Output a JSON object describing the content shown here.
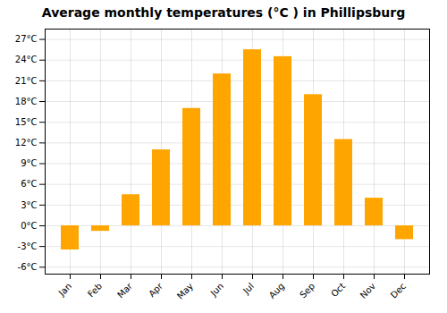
{
  "chart_data": {
    "type": "bar",
    "title": "Average monthly temperatures (°C ) in Phillipsburg",
    "categories": [
      "Jan",
      "Feb",
      "Mar",
      "Apr",
      "May",
      "Jun",
      "Jul",
      "Aug",
      "Sep",
      "Oct",
      "Nov",
      "Dec"
    ],
    "values": [
      -3.5,
      -0.8,
      4.5,
      11.0,
      17.0,
      22.0,
      25.5,
      24.5,
      19.0,
      12.5,
      4.0,
      -2.0
    ],
    "color": "#FFA500",
    "ylim": [
      -7,
      28.5
    ],
    "yticks": [
      {
        "value": -6,
        "label": "-6°C"
      },
      {
        "value": -3,
        "label": "-3°C"
      },
      {
        "value": 0,
        "label": "0°C"
      },
      {
        "value": 3,
        "label": "3°C"
      },
      {
        "value": 6,
        "label": "6°C"
      },
      {
        "value": 9,
        "label": "9°C"
      },
      {
        "value": 12,
        "label": "12°C"
      },
      {
        "value": 15,
        "label": "15°C"
      },
      {
        "value": 18,
        "label": "18°C"
      },
      {
        "value": 21,
        "label": "21°C"
      },
      {
        "value": 24,
        "label": "24°C"
      },
      {
        "value": 27,
        "label": "27°C"
      }
    ],
    "grid": true
  }
}
